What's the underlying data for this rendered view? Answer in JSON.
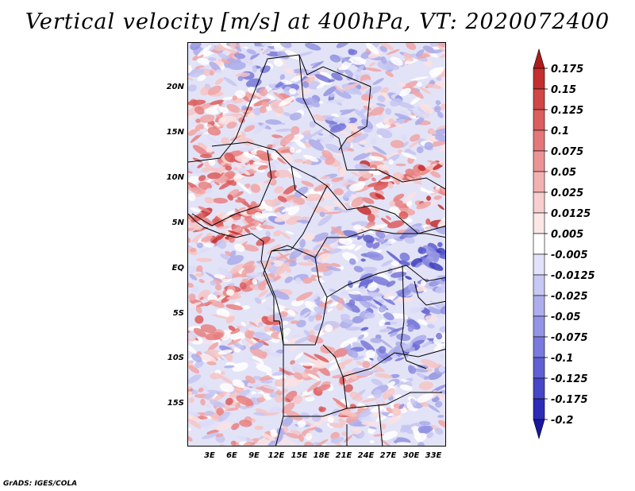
{
  "title": "Vertical velocity [m/s] at 400hPa, VT: 2020072400",
  "credit": "GrADS: IGES/COLA",
  "map": {
    "lat_ticks": [
      "20N",
      "15N",
      "10N",
      "5N",
      "EQ",
      "5S",
      "10S",
      "15S"
    ],
    "lon_ticks": [
      "3E",
      "6E",
      "9E",
      "12E",
      "15E",
      "18E",
      "21E",
      "24E",
      "27E",
      "30E",
      "33E"
    ]
  },
  "colorbar": {
    "labels": [
      "0.175",
      "0.15",
      "0.125",
      "0.1",
      "0.075",
      "0.05",
      "0.025",
      "0.0125",
      "0.005",
      "-0.005",
      "-0.0125",
      "-0.025",
      "-0.05",
      "-0.075",
      "-0.1",
      "-0.125",
      "-0.175",
      "-0.2"
    ],
    "colors": [
      "#b01c1c",
      "#c42e2e",
      "#d24646",
      "#dc5e5e",
      "#e47878",
      "#ec9494",
      "#f3b2b2",
      "#f8cece",
      "#fce6e6",
      "#ffffff",
      "#e2e2fa",
      "#c8c8f4",
      "#aeaeee",
      "#9494e6",
      "#7a7ade",
      "#6060d4",
      "#4646c8",
      "#2c2cb8",
      "#1818a0"
    ]
  }
}
